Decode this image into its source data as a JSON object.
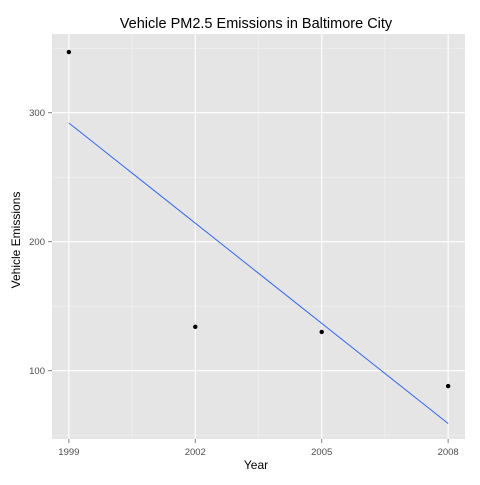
{
  "chart_data": {
    "type": "scatter",
    "title": "Vehicle PM2.5 Emissions in Baltimore City",
    "xlabel": "Year",
    "ylabel": "Vehicle Emissions",
    "x_ticks": [
      "1999",
      "2002",
      "2005",
      "2008"
    ],
    "y_ticks": [
      "100",
      "200",
      "300"
    ],
    "xlim": [
      1998.6,
      2008.4
    ],
    "ylim": [
      47,
      361
    ],
    "grid": true,
    "legend": "none",
    "points": [
      {
        "x": 1999,
        "y": 347
      },
      {
        "x": 2002,
        "y": 134
      },
      {
        "x": 2005,
        "y": 130
      },
      {
        "x": 2008,
        "y": 88
      }
    ],
    "trend_line": {
      "x": [
        1999,
        2008
      ],
      "y": [
        292,
        59
      ]
    },
    "colors": {
      "panel": "#e5e5e5",
      "grid_major": "#ffffff",
      "grid_minor": "#f2f2f2",
      "point": "#000000",
      "trend": "#3366ff",
      "tick_label": "#4d4d4d"
    }
  }
}
